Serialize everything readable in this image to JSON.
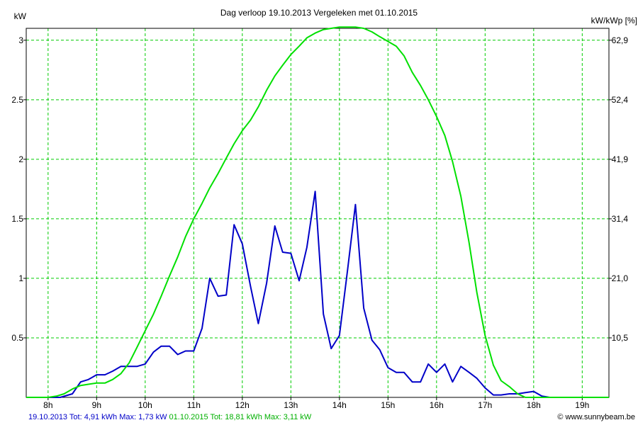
{
  "chart_data": {
    "type": "line",
    "title": "Dag  verloop 19.10.2013   Vergeleken met 01.10.2015",
    "ylabel_left": "kW",
    "ylabel_right": "kW/kWp [%]",
    "xlim": [
      7.55,
      19.55
    ],
    "ylim": [
      0,
      3.1
    ],
    "grid": true,
    "x_ticks": [
      {
        "x": 8,
        "label": "8h"
      },
      {
        "x": 9,
        "label": "9h"
      },
      {
        "x": 10,
        "label": "10h"
      },
      {
        "x": 11,
        "label": "11h"
      },
      {
        "x": 12,
        "label": "12h"
      },
      {
        "x": 13,
        "label": "13h"
      },
      {
        "x": 14,
        "label": "14h"
      },
      {
        "x": 15,
        "label": "15h"
      },
      {
        "x": 16,
        "label": "16h"
      },
      {
        "x": 17,
        "label": "17h"
      },
      {
        "x": 18,
        "label": "18h"
      },
      {
        "x": 19,
        "label": "19h"
      }
    ],
    "y_ticks_left": [
      {
        "y": 0.5,
        "label": "0.5"
      },
      {
        "y": 1,
        "label": "1"
      },
      {
        "y": 1.5,
        "label": "1.5"
      },
      {
        "y": 2,
        "label": "2"
      },
      {
        "y": 2.5,
        "label": "2.5"
      },
      {
        "y": 3,
        "label": "3"
      }
    ],
    "y_ticks_right": [
      {
        "y": 0.5,
        "label": "10,5"
      },
      {
        "y": 1,
        "label": "21,0"
      },
      {
        "y": 1.5,
        "label": "31,4"
      },
      {
        "y": 2,
        "label": "41,9"
      },
      {
        "y": 2.5,
        "label": "52,4"
      },
      {
        "y": 3,
        "label": "62,9"
      }
    ],
    "series": [
      {
        "name": "19.10.2013",
        "color": "#0000c8",
        "x": [
          8.0,
          8.25,
          8.5,
          8.67,
          8.83,
          9.0,
          9.17,
          9.33,
          9.5,
          9.67,
          9.83,
          10.0,
          10.17,
          10.33,
          10.5,
          10.67,
          10.83,
          11.0,
          11.17,
          11.33,
          11.5,
          11.67,
          11.83,
          12.0,
          12.17,
          12.33,
          12.5,
          12.67,
          12.83,
          13.0,
          13.17,
          13.33,
          13.5,
          13.67,
          13.83,
          14.0,
          14.17,
          14.33,
          14.5,
          14.67,
          14.83,
          15.0,
          15.17,
          15.33,
          15.5,
          15.67,
          15.83,
          16.0,
          16.17,
          16.33,
          16.5,
          16.67,
          16.83,
          17.0,
          17.17,
          17.33,
          17.5,
          17.67,
          17.83,
          18.0,
          18.17,
          18.33,
          18.5,
          18.67,
          18.83,
          19.0
        ],
        "values": [
          0,
          0,
          0.03,
          0.13,
          0.15,
          0.19,
          0.19,
          0.22,
          0.26,
          0.26,
          0.26,
          0.28,
          0.38,
          0.43,
          0.43,
          0.36,
          0.39,
          0.39,
          0.58,
          1.0,
          0.85,
          0.86,
          1.45,
          1.29,
          0.93,
          0.62,
          0.96,
          1.44,
          1.22,
          1.21,
          0.98,
          1.26,
          1.73,
          0.7,
          0.41,
          0.52,
          1.08,
          1.62,
          0.75,
          0.48,
          0.4,
          0.25,
          0.21,
          0.21,
          0.13,
          0.13,
          0.28,
          0.21,
          0.28,
          0.13,
          0.26,
          0.21,
          0.16,
          0.08,
          0.02,
          0.02,
          0.03,
          0.03,
          0.04,
          0.05,
          0.01,
          0,
          0,
          0,
          0,
          0
        ]
      },
      {
        "name": "01.10.2015",
        "color": "#00e000",
        "x": [
          7.55,
          7.67,
          8.0,
          8.17,
          8.33,
          8.5,
          8.67,
          8.83,
          9.0,
          9.17,
          9.33,
          9.5,
          9.67,
          9.83,
          10.0,
          10.17,
          10.33,
          10.5,
          10.67,
          10.83,
          11.0,
          11.17,
          11.33,
          11.5,
          11.67,
          11.83,
          12.0,
          12.17,
          12.33,
          12.5,
          12.67,
          12.83,
          13.0,
          13.17,
          13.33,
          13.5,
          13.67,
          13.83,
          14.0,
          14.17,
          14.33,
          14.5,
          14.67,
          14.83,
          15.0,
          15.17,
          15.33,
          15.5,
          15.67,
          15.83,
          16.0,
          16.17,
          16.33,
          16.5,
          16.67,
          16.83,
          17.0,
          17.17,
          17.33,
          17.5,
          17.67,
          17.83,
          18.0,
          18.17,
          18.33,
          18.5,
          18.67,
          18.83,
          19.0,
          19.17,
          19.55
        ],
        "values": [
          0,
          0,
          0,
          0.01,
          0.03,
          0.07,
          0.1,
          0.11,
          0.12,
          0.12,
          0.15,
          0.2,
          0.29,
          0.42,
          0.56,
          0.7,
          0.85,
          1.02,
          1.18,
          1.35,
          1.5,
          1.63,
          1.76,
          1.88,
          2.01,
          2.13,
          2.24,
          2.33,
          2.44,
          2.58,
          2.7,
          2.79,
          2.88,
          2.95,
          3.02,
          3.06,
          3.09,
          3.1,
          3.11,
          3.11,
          3.11,
          3.1,
          3.07,
          3.03,
          2.99,
          2.95,
          2.87,
          2.73,
          2.62,
          2.5,
          2.36,
          2.2,
          1.98,
          1.69,
          1.3,
          0.88,
          0.52,
          0.27,
          0.14,
          0.09,
          0.03,
          0,
          0,
          0,
          0,
          0,
          0,
          0,
          0,
          0,
          0
        ]
      }
    ]
  },
  "footer": {
    "blue_text": "19.10.2013 Tot: 4,91 kWh Max: 1,73 kW",
    "green_text": "01.10.2015 Tot: 18,81 kWh Max: 3,11 kW",
    "credit": "© www.sunnybeam.be"
  }
}
